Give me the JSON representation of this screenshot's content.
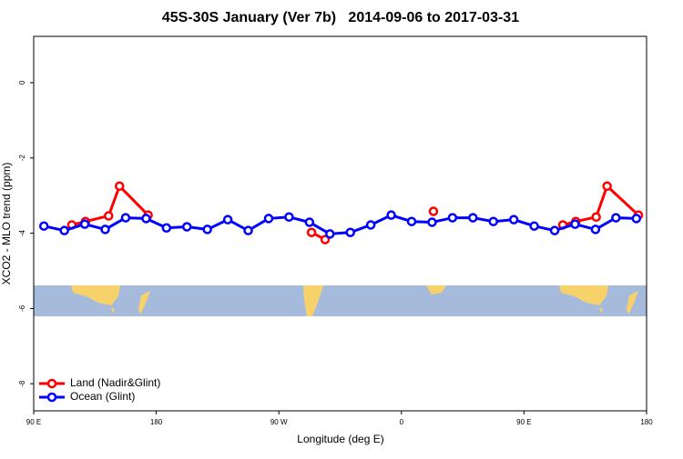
{
  "chart_data": {
    "type": "line",
    "title": "45S-30S January (Ver 7b)   2014-09-06 to 2017-03-31",
    "x_label": "Longitude (deg E)",
    "y_label": "XCO2 - MLO trend (ppm)",
    "xlim": [
      90,
      540
    ],
    "xticks": [
      {
        "value": 90,
        "label": "90 E"
      },
      {
        "value": 180,
        "label": "180"
      },
      {
        "value": 270,
        "label": "90 W"
      },
      {
        "value": 360,
        "label": "0"
      },
      {
        "value": 450,
        "label": "90 E"
      },
      {
        "value": 540,
        "label": "180"
      }
    ],
    "ylim": [
      -8.72,
      1.23
    ],
    "yticks": [
      0,
      -2,
      -4,
      -6,
      -8
    ],
    "legend": "bottom-left",
    "series": [
      {
        "name": "Land (Nadir&Glint)",
        "color": "#ff0000",
        "x": [
          118,
          128,
          145,
          153,
          174,
          null,
          294,
          304,
          null,
          383.5,
          null,
          478.5,
          488,
          503,
          511,
          534
        ],
        "values": [
          -3.78,
          -3.69,
          -3.54,
          -2.75,
          -3.52,
          null,
          -3.98,
          -4.17,
          null,
          -3.42,
          null,
          -3.78,
          -3.69,
          -3.57,
          -2.75,
          -3.52
        ]
      },
      {
        "name": "Ocean (Glint)",
        "color": "#0000ff",
        "x": [
          97.5,
          112.5,
          127.5,
          142.5,
          157.5,
          172.5,
          187.5,
          202.5,
          217.5,
          232.5,
          247.5,
          262.5,
          277.5,
          292.5,
          307.5,
          322.5,
          337.5,
          352.5,
          367.5,
          382.5,
          397.5,
          412.5,
          427.5,
          442.5,
          457.5,
          472.5,
          487.5,
          502.5,
          517.5,
          532.5
        ],
        "values": [
          -3.81,
          -3.93,
          -3.76,
          -3.9,
          -3.59,
          -3.61,
          -3.86,
          -3.83,
          -3.9,
          -3.64,
          -3.93,
          -3.61,
          -3.57,
          -3.71,
          -4.02,
          -3.98,
          -3.78,
          -3.52,
          -3.69,
          -3.71,
          -3.59,
          -3.59,
          -3.69,
          -3.64,
          -3.81,
          -3.93,
          -3.76,
          -3.9,
          -3.59,
          -3.61
        ]
      }
    ]
  }
}
